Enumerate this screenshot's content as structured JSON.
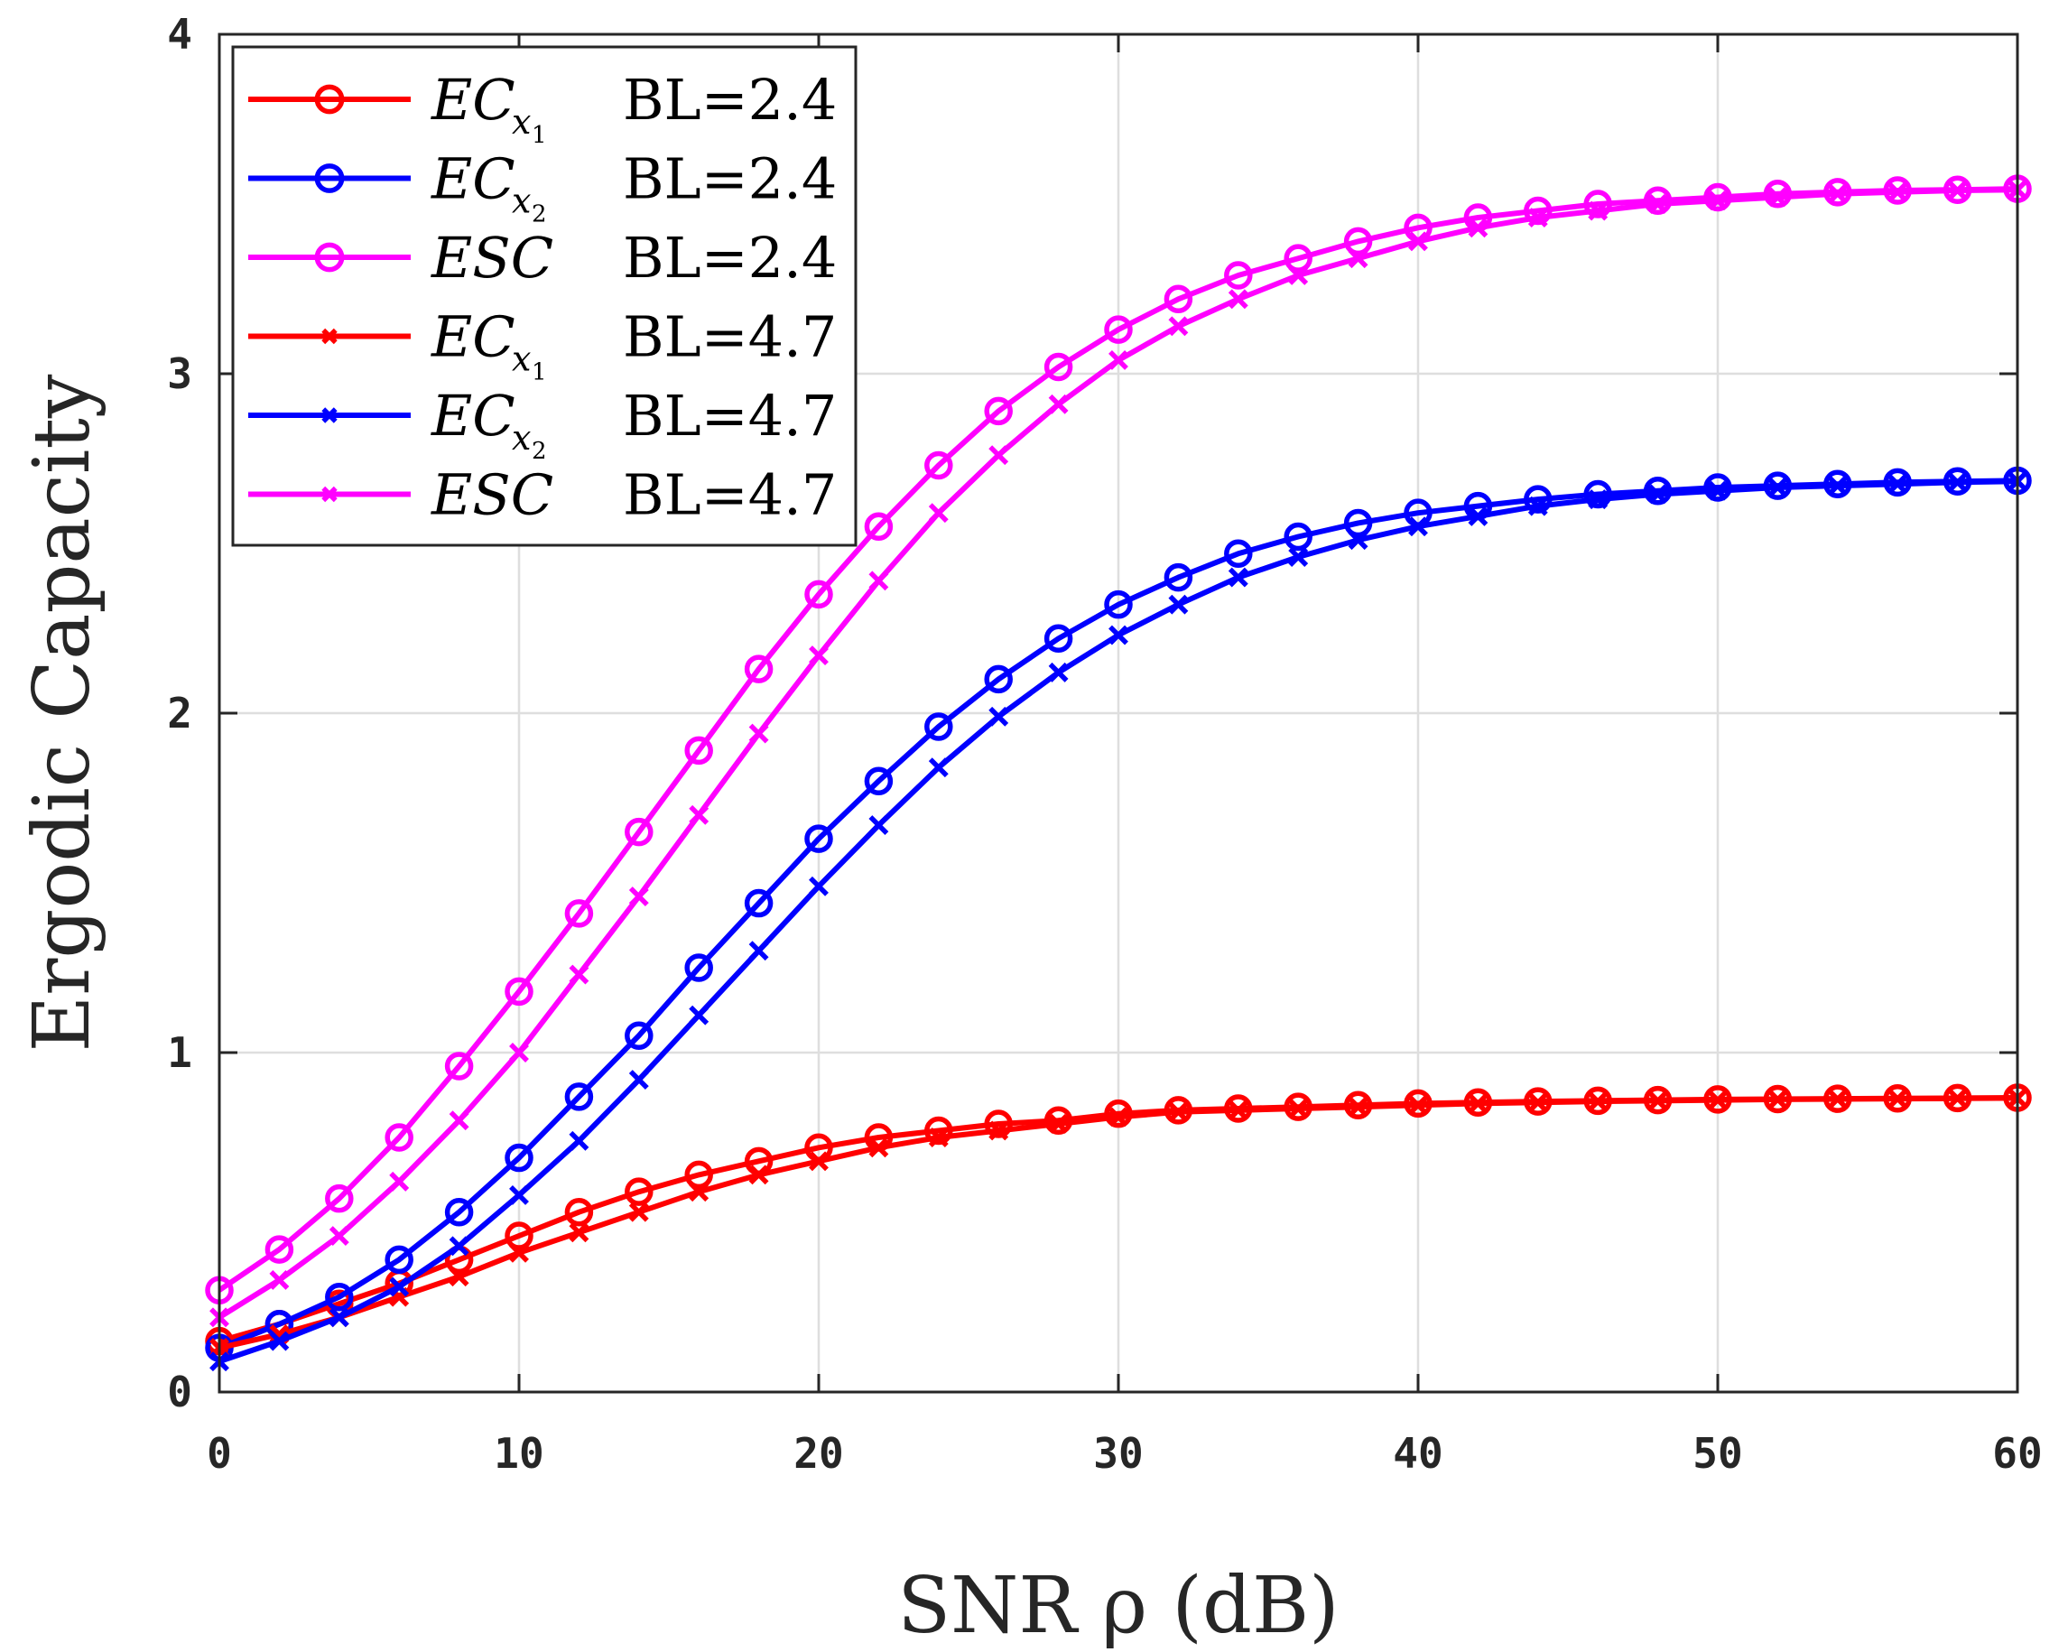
{
  "chart_data": {
    "type": "line",
    "title": "",
    "xlabel": "SNR ρ (dB)",
    "ylabel": "Ergodic Capacity",
    "xlim": [
      0,
      60
    ],
    "ylim": [
      0,
      4
    ],
    "xticks": [
      0,
      10,
      20,
      30,
      40,
      50,
      60
    ],
    "yticks": [
      0,
      1,
      2,
      3,
      4
    ],
    "xtick_labels": [
      "0",
      "10",
      "20",
      "30",
      "40",
      "50",
      "60"
    ],
    "ytick_labels": [
      "0",
      "1",
      "2",
      "3",
      "4"
    ],
    "grid": true,
    "legend_position": "top-left",
    "x": [
      0,
      2,
      4,
      6,
      8,
      10,
      12,
      14,
      16,
      18,
      20,
      22,
      24,
      26,
      28,
      30,
      32,
      34,
      36,
      38,
      40,
      42,
      44,
      46,
      48,
      50,
      52,
      54,
      56,
      58,
      60
    ],
    "series": [
      {
        "name": "EC_x1 BL=2.4",
        "legend_label": "EC",
        "legend_sub": "x",
        "legend_subsub": "1",
        "legend_bl": "BL=2.4",
        "color": "#ff0000",
        "marker": "circle",
        "values": [
          0.15,
          0.2,
          0.26,
          0.32,
          0.39,
          0.46,
          0.53,
          0.59,
          0.64,
          0.68,
          0.72,
          0.75,
          0.77,
          0.79,
          0.8,
          0.82,
          0.83,
          0.835,
          0.84,
          0.845,
          0.85,
          0.853,
          0.856,
          0.858,
          0.86,
          0.862,
          0.863,
          0.864,
          0.865,
          0.866,
          0.867
        ]
      },
      {
        "name": "EC_x2 BL=2.4",
        "legend_label": "EC",
        "legend_sub": "x",
        "legend_subsub": "2",
        "legend_bl": "BL=2.4",
        "color": "#0000ff",
        "marker": "circle",
        "values": [
          0.13,
          0.2,
          0.28,
          0.39,
          0.53,
          0.69,
          0.87,
          1.05,
          1.25,
          1.44,
          1.63,
          1.8,
          1.96,
          2.1,
          2.22,
          2.32,
          2.4,
          2.47,
          2.52,
          2.56,
          2.59,
          2.61,
          2.63,
          2.645,
          2.655,
          2.665,
          2.67,
          2.675,
          2.68,
          2.683,
          2.685
        ]
      },
      {
        "name": "ESC BL=2.4",
        "legend_label": "ESC",
        "legend_sub": "",
        "legend_subsub": "",
        "legend_bl": "BL=2.4",
        "color": "#ff00ff",
        "marker": "circle",
        "values": [
          0.3,
          0.42,
          0.57,
          0.75,
          0.96,
          1.18,
          1.41,
          1.65,
          1.89,
          2.13,
          2.35,
          2.55,
          2.73,
          2.89,
          3.02,
          3.13,
          3.22,
          3.29,
          3.34,
          3.39,
          3.43,
          3.46,
          3.48,
          3.5,
          3.51,
          3.52,
          3.53,
          3.535,
          3.54,
          3.542,
          3.545
        ]
      },
      {
        "name": "EC_x1 BL=4.7",
        "legend_label": "EC",
        "legend_sub": "x",
        "legend_subsub": "1",
        "legend_bl": "BL=4.7",
        "color": "#ff0000",
        "marker": "x",
        "values": [
          0.13,
          0.17,
          0.22,
          0.28,
          0.34,
          0.41,
          0.47,
          0.53,
          0.59,
          0.64,
          0.68,
          0.72,
          0.75,
          0.77,
          0.79,
          0.81,
          0.825,
          0.83,
          0.835,
          0.84,
          0.845,
          0.85,
          0.853,
          0.856,
          0.858,
          0.86,
          0.862,
          0.863,
          0.864,
          0.865,
          0.866
        ]
      },
      {
        "name": "EC_x2 BL=4.7",
        "legend_label": "EC",
        "legend_sub": "x",
        "legend_subsub": "2",
        "legend_bl": "BL=4.7",
        "color": "#0000ff",
        "marker": "x",
        "values": [
          0.09,
          0.15,
          0.22,
          0.31,
          0.43,
          0.58,
          0.74,
          0.92,
          1.11,
          1.3,
          1.49,
          1.67,
          1.84,
          1.99,
          2.12,
          2.23,
          2.32,
          2.4,
          2.46,
          2.51,
          2.55,
          2.58,
          2.61,
          2.63,
          2.645,
          2.655,
          2.665,
          2.67,
          2.675,
          2.68,
          2.683
        ]
      },
      {
        "name": "ESC BL=4.7",
        "legend_label": "ESC",
        "legend_sub": "",
        "legend_subsub": "",
        "legend_bl": "BL=4.7",
        "color": "#ff00ff",
        "marker": "x",
        "values": [
          0.22,
          0.33,
          0.46,
          0.62,
          0.8,
          1.0,
          1.23,
          1.46,
          1.7,
          1.94,
          2.17,
          2.39,
          2.59,
          2.76,
          2.91,
          3.04,
          3.14,
          3.22,
          3.29,
          3.34,
          3.39,
          3.43,
          3.46,
          3.48,
          3.5,
          3.51,
          3.52,
          3.53,
          3.535,
          3.54,
          3.542
        ]
      }
    ]
  }
}
